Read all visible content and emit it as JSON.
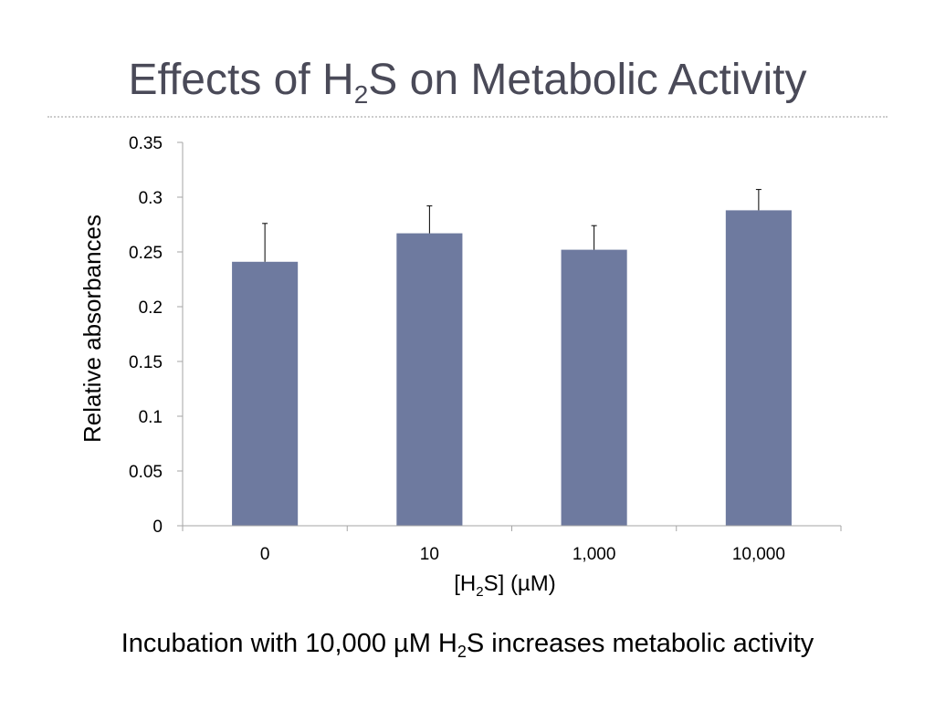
{
  "slide": {
    "title_pre": "Effects of H",
    "title_sub": "2",
    "title_post": "S on Metabolic Activity",
    "caption_pre": "Incubation with 10,000 µM H",
    "caption_sub": "2",
    "caption_post": "S increases metabolic activity"
  },
  "colors": {
    "bar": "#6e7a9f",
    "title": "#4a4a58",
    "axis": "#a6a6a6",
    "text": "#000000"
  },
  "chart_data": {
    "type": "bar",
    "categories": [
      "0",
      "10",
      "1,000",
      "10,000"
    ],
    "values": [
      0.241,
      0.267,
      0.252,
      0.288
    ],
    "error_upper": [
      0.035,
      0.025,
      0.022,
      0.019
    ],
    "ylim": [
      0,
      0.35
    ],
    "yticks": [
      "0",
      "0.05",
      "0.1",
      "0.15",
      "0.2",
      "0.25",
      "0.3",
      "0.35"
    ],
    "ytick_values": [
      0,
      0.05,
      0.1,
      0.15,
      0.2,
      0.25,
      0.3,
      0.35
    ],
    "ylabel": "Relative absorbances",
    "xlabel_pre": "[H",
    "xlabel_sub": "2",
    "xlabel_post": "S] (µM)",
    "grid": false,
    "legend": "none"
  }
}
